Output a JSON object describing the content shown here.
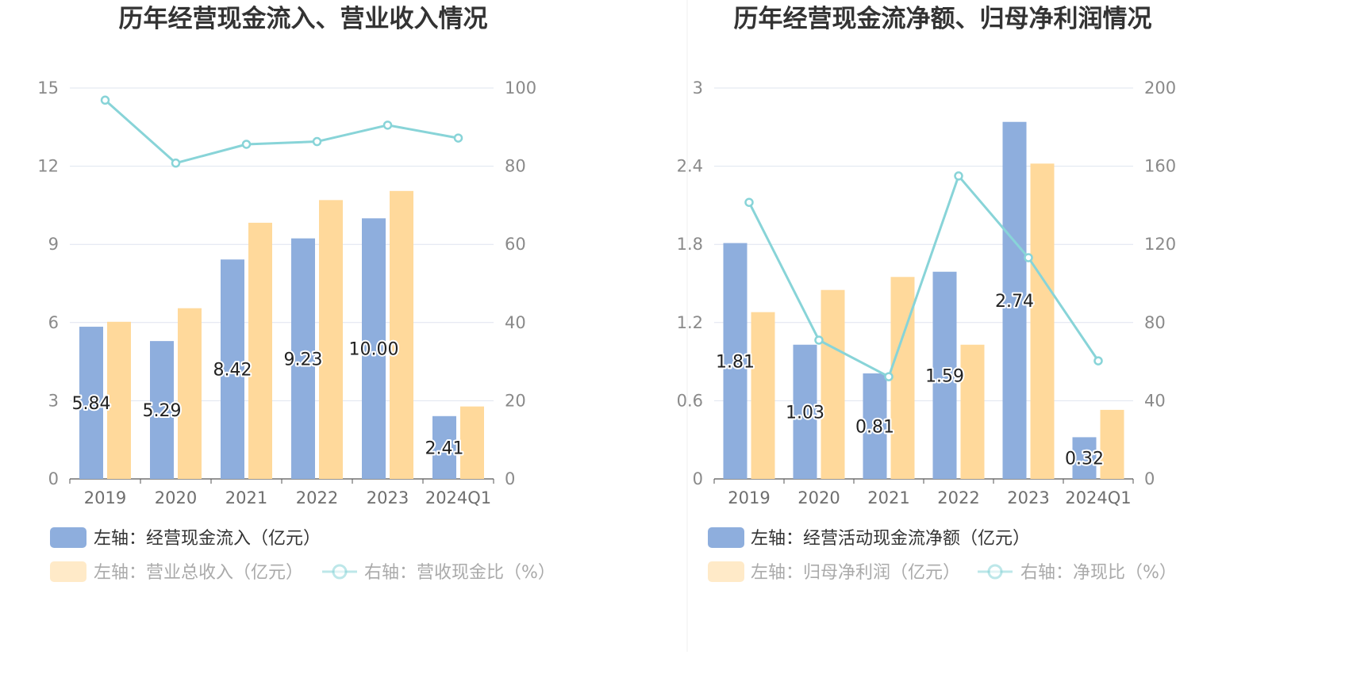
{
  "colors": {
    "bar_left": "#8eaedd",
    "bar_right": "#ffd99b",
    "line": "#88d4d8",
    "grid": "#dfe4ef",
    "axis": "#555555",
    "legend_text_active": "#333333",
    "legend_text_inactive": "#aaaaaa"
  },
  "chart_data": [
    {
      "type": "bar",
      "title": "历年经营现金流入、营业收入情况",
      "categories": [
        "2019",
        "2020",
        "2021",
        "2022",
        "2023",
        "2024Q1"
      ],
      "left_axis": {
        "min": 0,
        "max": 15,
        "ticks": [
          "0",
          "3",
          "6",
          "9",
          "12",
          "15"
        ]
      },
      "right_axis": {
        "min": 0,
        "max": 100,
        "ticks": [
          "0",
          "20",
          "40",
          "60",
          "80",
          "100"
        ]
      },
      "series": [
        {
          "name": "左轴：经营现金流入（亿元）",
          "kind": "bar",
          "axis": "left",
          "values": [
            5.84,
            5.29,
            8.42,
            9.23,
            10.0,
            2.41
          ],
          "labels": [
            "5.84",
            "5.29",
            "8.42",
            "9.23",
            "10.00",
            "2.41"
          ]
        },
        {
          "name": "左轴：营业总收入（亿元）",
          "kind": "bar",
          "axis": "left",
          "values": [
            6.03,
            6.55,
            9.83,
            10.7,
            11.05,
            2.78
          ]
        },
        {
          "name": "右轴：营收现金比（%）",
          "kind": "line",
          "axis": "right",
          "values": [
            96.9,
            80.8,
            85.6,
            86.3,
            90.5,
            87.2
          ]
        }
      ]
    },
    {
      "type": "bar",
      "title": "历年经营现金流净额、归母净利润情况",
      "categories": [
        "2019",
        "2020",
        "2021",
        "2022",
        "2023",
        "2024Q1"
      ],
      "left_axis": {
        "min": 0,
        "max": 3,
        "ticks": [
          "0",
          "0.6",
          "1.2",
          "1.8",
          "2.4",
          "3"
        ]
      },
      "right_axis": {
        "min": 0,
        "max": 200,
        "ticks": [
          "0",
          "40",
          "80",
          "120",
          "160",
          "200"
        ]
      },
      "series": [
        {
          "name": "左轴：经营活动现金流净额（亿元）",
          "kind": "bar",
          "axis": "left",
          "values": [
            1.81,
            1.03,
            0.81,
            1.59,
            2.74,
            0.32
          ],
          "labels": [
            "1.81",
            "1.03",
            "0.81",
            "1.59",
            "2.74",
            "0.32"
          ]
        },
        {
          "name": "左轴：归母净利润（亿元）",
          "kind": "bar",
          "axis": "left",
          "values": [
            1.28,
            1.45,
            1.55,
            1.03,
            2.42,
            0.53
          ]
        },
        {
          "name": "右轴：净现比（%）",
          "kind": "line",
          "axis": "right",
          "values": [
            141.5,
            71.0,
            52.3,
            155.0,
            113.2,
            60.4
          ]
        }
      ]
    }
  ]
}
